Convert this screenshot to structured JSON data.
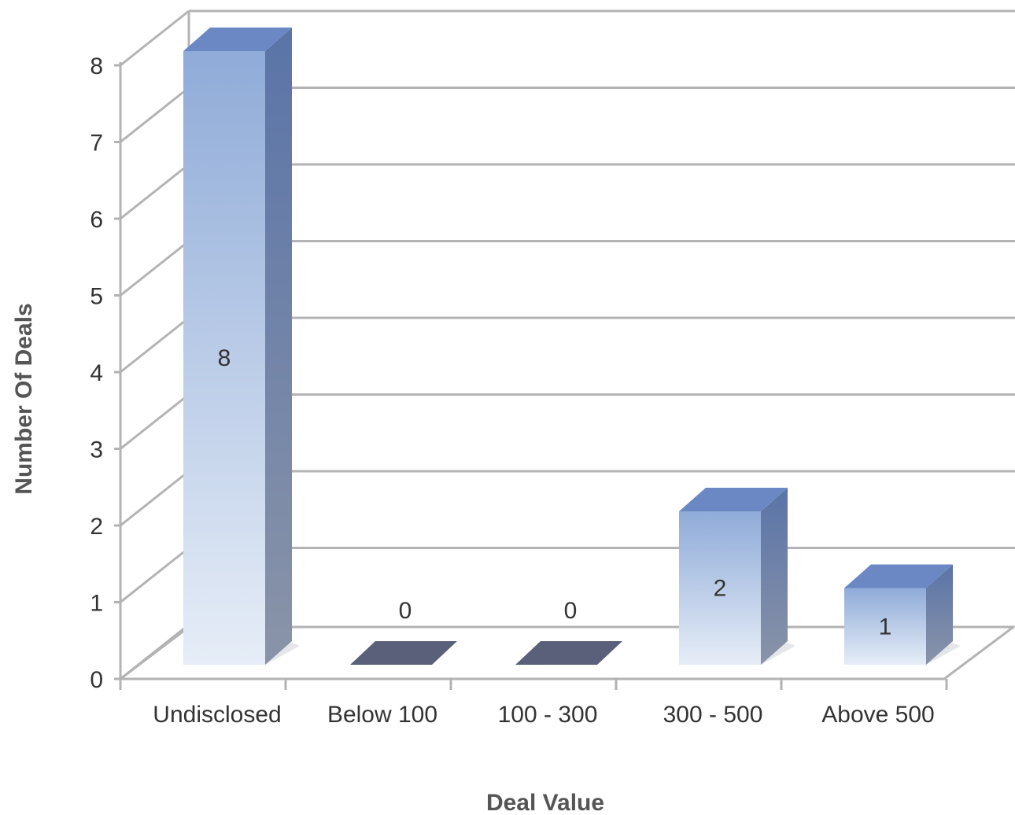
{
  "chart_data": {
    "type": "bar",
    "style": "3d-column",
    "categories": [
      "Undisclosed",
      "Below 100",
      "100 - 300",
      "300 - 500",
      "Above 500"
    ],
    "values": [
      8,
      0,
      0,
      2,
      1
    ],
    "data_labels": [
      "8",
      "0",
      "0",
      "2",
      "1"
    ],
    "xlabel": "Deal Value",
    "ylabel": "Number Of Deals",
    "ylim": [
      0,
      8
    ],
    "yticks": [
      "0",
      "1",
      "2",
      "3",
      "4",
      "5",
      "6",
      "7",
      "8"
    ],
    "grid": true,
    "legend": "none",
    "colors": {
      "bar_top_light": "#8fabd8",
      "bar_bottom_light": "#e6edf7",
      "bar_side": "#5c76a8",
      "bar_cap": "#6b88c4",
      "zero_bar": "#5a6079",
      "grid": "#b3b3b3"
    }
  }
}
